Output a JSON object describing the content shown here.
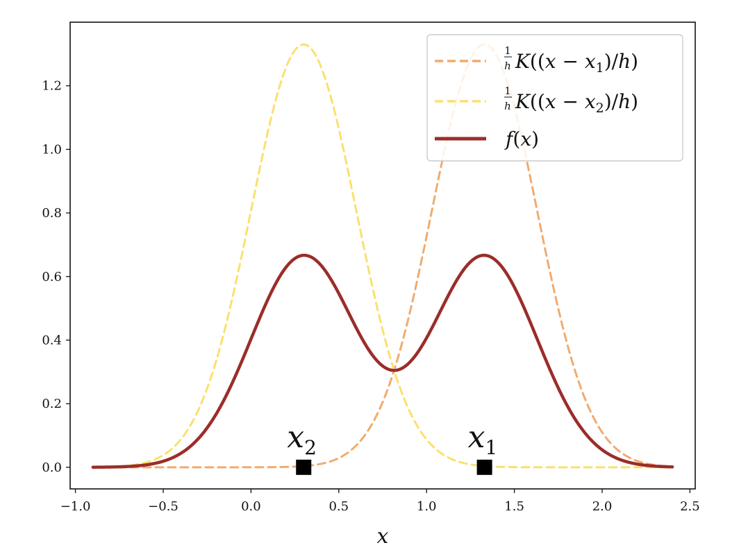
{
  "chart_data": {
    "type": "line",
    "xlabel": "x",
    "xlim": [
      -1.03,
      2.53
    ],
    "ylim": [
      -0.068,
      1.4
    ],
    "x_ticks": [
      -1.0,
      -0.5,
      0.0,
      0.5,
      1.0,
      1.5,
      2.0,
      2.5
    ],
    "x_tick_labels": [
      "−1.0",
      "−0.5",
      "0.0",
      "0.5",
      "1.0",
      "1.5",
      "2.0",
      "2.5"
    ],
    "y_ticks": [
      0.0,
      0.2,
      0.4,
      0.6,
      0.8,
      1.0,
      1.2
    ],
    "y_tick_labels": [
      "0.0",
      "0.2",
      "0.4",
      "0.6",
      "0.8",
      "1.0",
      "1.2"
    ],
    "grid": false,
    "legend_position": "top-right",
    "legend": [
      {
        "label": "(1/h)K((x − x₁)/h)",
        "color": "#f0ab6e",
        "style": "dashed"
      },
      {
        "label": "(1/h)K((x − x₂)/h)",
        "color": "#fbe06c",
        "style": "dashed"
      },
      {
        "label": "f(x)",
        "color": "#9b2d2a",
        "style": "solid"
      }
    ],
    "x_range": [
      -0.9,
      2.4
    ],
    "series": [
      {
        "name": "(1/h)K((x − x₁)/h)",
        "kind": "kernel",
        "center": 1.33,
        "peak": 1.33,
        "sigma": 0.3,
        "color": "#f0ab6e",
        "dash": true
      },
      {
        "name": "(1/h)K((x − x₂)/h)",
        "kind": "kernel",
        "center": 0.3,
        "peak": 1.33,
        "sigma": 0.3,
        "color": "#fbe06c",
        "dash": true
      },
      {
        "name": "f(x)",
        "kind": "mixture",
        "components": [
          0,
          1
        ],
        "weight": 0.5,
        "color": "#9b2d2a",
        "dash": false
      }
    ],
    "points": [
      {
        "label": "x",
        "sub": "1",
        "x": 1.33,
        "y": 0.0
      },
      {
        "label": "x",
        "sub": "2",
        "x": 0.3,
        "y": 0.0
      }
    ]
  }
}
